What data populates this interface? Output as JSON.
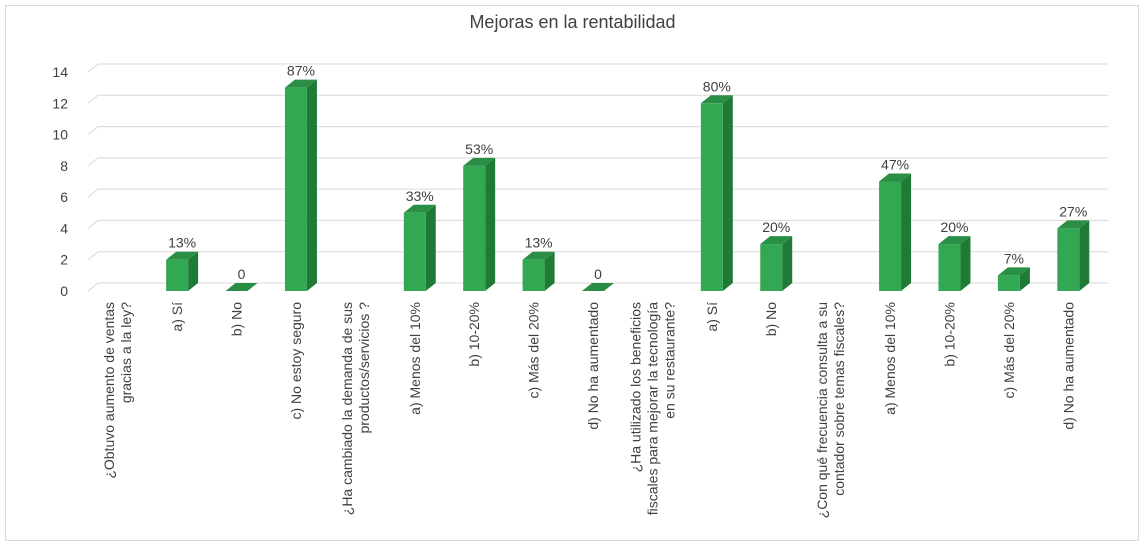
{
  "chart_data": {
    "type": "bar",
    "title": "Mejoras en la rentabilidad",
    "xlabel": "",
    "ylabel": "",
    "ylim": [
      0,
      14
    ],
    "yticks": [
      0,
      2,
      4,
      6,
      8,
      10,
      12,
      14
    ],
    "grid": true,
    "legend": "none",
    "colors": {
      "bar_front": "#33a852",
      "bar_side": "#1f7a36",
      "bar_top": "#2a8f44",
      "grid": "#d9d9d9"
    },
    "categories": [
      [
        "¿Obtuvo aumento de ventas",
        "gracias a la ley?"
      ],
      [
        "a) Sí"
      ],
      [
        "b) No"
      ],
      [
        "c) No estoy seguro"
      ],
      [
        "¿Ha cambiado la demanda de sus",
        "productos/servicios ?"
      ],
      [
        "a) Menos del 10%"
      ],
      [
        "b) 10-20%"
      ],
      [
        "c) Más del 20%"
      ],
      [
        "d) No ha aumentado"
      ],
      [
        "¿Ha utilizado los beneficios",
        "fiscales para mejorar la tecnología",
        "en su restaurante?"
      ],
      [
        "a) Sí"
      ],
      [
        "b) No"
      ],
      [
        "¿Con qué frecuencia consulta a su",
        "contador sobre temas fiscales?"
      ],
      [
        "a) Menos del 10%"
      ],
      [
        "b) 10-20%"
      ],
      [
        "c) Más del 20%"
      ],
      [
        "d) No ha aumentado"
      ]
    ],
    "values": [
      null,
      2,
      0,
      13,
      null,
      5,
      8,
      2,
      0,
      null,
      12,
      3,
      null,
      7,
      3,
      1,
      4
    ],
    "data_labels": [
      "",
      "13%",
      "0",
      "87%",
      "",
      "33%",
      "53%",
      "13%",
      "0",
      "",
      "80%",
      "20%",
      "",
      "47%",
      "20%",
      "7%",
      "27%"
    ]
  }
}
